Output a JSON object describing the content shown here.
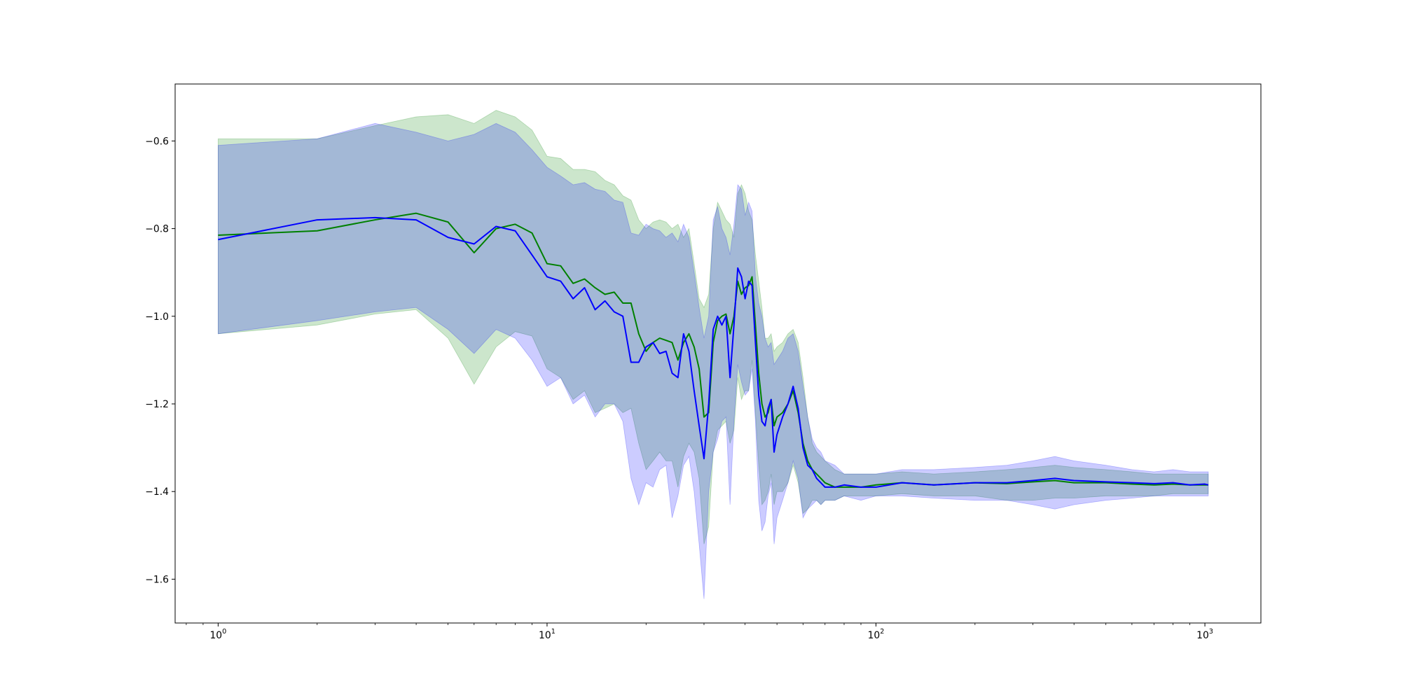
{
  "chart_data": {
    "type": "line",
    "title": "",
    "xlabel": "",
    "ylabel": "",
    "xscale": "log",
    "xlim": [
      0.74,
      1480
    ],
    "ylim": [
      -1.7,
      -0.47
    ],
    "grid": false,
    "legend": "none",
    "x_ticks": [
      {
        "base": "10",
        "exp": "0",
        "value": 1
      },
      {
        "base": "10",
        "exp": "1",
        "value": 10
      },
      {
        "base": "10",
        "exp": "2",
        "value": 100
      },
      {
        "base": "10",
        "exp": "3",
        "value": 1000
      }
    ],
    "y_ticks": [
      {
        "label": "−0.6",
        "value": -0.6
      },
      {
        "label": "−0.8",
        "value": -0.8
      },
      {
        "label": "−1.0",
        "value": -1.0
      },
      {
        "label": "−1.2",
        "value": -1.2
      },
      {
        "label": "−1.4",
        "value": -1.4
      },
      {
        "label": "−1.6",
        "value": -1.6
      }
    ],
    "series": [
      {
        "color": "#008000",
        "band_color": "#008000",
        "band_alpha": 0.2,
        "x": [
          1,
          2,
          3,
          4,
          5,
          6,
          7,
          8,
          9,
          10,
          11,
          12,
          13,
          14,
          15,
          16,
          17,
          18,
          19,
          20,
          21,
          22,
          23,
          24,
          25,
          26,
          27,
          28,
          29,
          30,
          31,
          32,
          33,
          34,
          35,
          36,
          37,
          38,
          39,
          40,
          41,
          42,
          43,
          44,
          45,
          46,
          47,
          48,
          49,
          50,
          52,
          54,
          56,
          58,
          60,
          62,
          64,
          66,
          68,
          70,
          75,
          80,
          90,
          100,
          120,
          150,
          200,
          250,
          300,
          350,
          400,
          500,
          600,
          700,
          800,
          900,
          1000,
          1024
        ],
        "y": [
          -0.815,
          -0.805,
          -0.78,
          -0.765,
          -0.785,
          -0.855,
          -0.8,
          -0.79,
          -0.81,
          -0.88,
          -0.885,
          -0.925,
          -0.915,
          -0.935,
          -0.95,
          -0.945,
          -0.97,
          -0.97,
          -1.04,
          -1.08,
          -1.06,
          -1.05,
          -1.055,
          -1.06,
          -1.1,
          -1.06,
          -1.04,
          -1.07,
          -1.12,
          -1.23,
          -1.22,
          -1.06,
          -1.01,
          -1.0,
          -0.995,
          -1.04,
          -1.0,
          -0.92,
          -0.95,
          -0.935,
          -0.93,
          -0.91,
          -1.02,
          -1.13,
          -1.2,
          -1.23,
          -1.22,
          -1.19,
          -1.25,
          -1.23,
          -1.22,
          -1.2,
          -1.17,
          -1.22,
          -1.29,
          -1.33,
          -1.35,
          -1.36,
          -1.37,
          -1.38,
          -1.39,
          -1.39,
          -1.39,
          -1.385,
          -1.38,
          -1.385,
          -1.38,
          -1.382,
          -1.378,
          -1.375,
          -1.38,
          -1.38,
          -1.383,
          -1.385,
          -1.383,
          -1.385,
          -1.385,
          -1.385
        ],
        "upper": [
          -0.595,
          -0.595,
          -0.565,
          -0.545,
          -0.54,
          -0.56,
          -0.53,
          -0.545,
          -0.575,
          -0.635,
          -0.64,
          -0.665,
          -0.665,
          -0.67,
          -0.69,
          -0.7,
          -0.725,
          -0.735,
          -0.78,
          -0.8,
          -0.785,
          -0.78,
          -0.785,
          -0.8,
          -0.79,
          -0.82,
          -0.8,
          -0.88,
          -0.96,
          -0.98,
          -0.95,
          -0.8,
          -0.74,
          -0.76,
          -0.78,
          -0.79,
          -0.82,
          -0.72,
          -0.7,
          -0.72,
          -0.76,
          -0.78,
          -0.86,
          -0.92,
          -0.98,
          -1.05,
          -1.05,
          -1.04,
          -1.08,
          -1.07,
          -1.06,
          -1.04,
          -1.03,
          -1.06,
          -1.14,
          -1.23,
          -1.29,
          -1.31,
          -1.32,
          -1.33,
          -1.35,
          -1.36,
          -1.36,
          -1.36,
          -1.355,
          -1.36,
          -1.355,
          -1.35,
          -1.345,
          -1.34,
          -1.345,
          -1.35,
          -1.355,
          -1.36,
          -1.36,
          -1.36,
          -1.36,
          -1.36
        ],
        "lower": [
          -1.04,
          -1.02,
          -0.995,
          -0.985,
          -1.05,
          -1.155,
          -1.07,
          -1.035,
          -1.045,
          -1.12,
          -1.14,
          -1.19,
          -1.17,
          -1.22,
          -1.21,
          -1.2,
          -1.22,
          -1.21,
          -1.29,
          -1.35,
          -1.33,
          -1.31,
          -1.33,
          -1.33,
          -1.39,
          -1.32,
          -1.29,
          -1.31,
          -1.37,
          -1.52,
          -1.48,
          -1.31,
          -1.26,
          -1.25,
          -1.24,
          -1.29,
          -1.26,
          -1.14,
          -1.19,
          -1.17,
          -1.17,
          -1.1,
          -1.22,
          -1.34,
          -1.43,
          -1.42,
          -1.4,
          -1.36,
          -1.43,
          -1.4,
          -1.4,
          -1.38,
          -1.34,
          -1.38,
          -1.45,
          -1.44,
          -1.42,
          -1.42,
          -1.43,
          -1.42,
          -1.42,
          -1.41,
          -1.41,
          -1.41,
          -1.405,
          -1.41,
          -1.41,
          -1.42,
          -1.42,
          -1.415,
          -1.415,
          -1.41,
          -1.41,
          -1.41,
          -1.405,
          -1.405,
          -1.405,
          -1.405
        ]
      },
      {
        "color": "#0000ff",
        "band_color": "#0000ff",
        "band_alpha": 0.2,
        "x": [
          1,
          2,
          3,
          4,
          5,
          6,
          7,
          8,
          9,
          10,
          11,
          12,
          13,
          14,
          15,
          16,
          17,
          18,
          19,
          20,
          21,
          22,
          23,
          24,
          25,
          26,
          27,
          28,
          29,
          30,
          31,
          32,
          33,
          34,
          35,
          36,
          37,
          38,
          39,
          40,
          41,
          42,
          43,
          44,
          45,
          46,
          47,
          48,
          49,
          50,
          52,
          54,
          56,
          58,
          60,
          62,
          64,
          66,
          68,
          70,
          75,
          80,
          90,
          100,
          120,
          150,
          200,
          250,
          300,
          350,
          400,
          500,
          600,
          700,
          800,
          900,
          1000,
          1024
        ],
        "y": [
          -0.825,
          -0.78,
          -0.775,
          -0.78,
          -0.82,
          -0.835,
          -0.795,
          -0.805,
          -0.86,
          -0.91,
          -0.92,
          -0.96,
          -0.935,
          -0.985,
          -0.965,
          -0.99,
          -1.0,
          -1.105,
          -1.105,
          -1.07,
          -1.06,
          -1.085,
          -1.08,
          -1.13,
          -1.14,
          -1.04,
          -1.08,
          -1.17,
          -1.25,
          -1.325,
          -1.2,
          -1.03,
          -1.0,
          -1.02,
          -1.0,
          -1.14,
          -1.02,
          -0.89,
          -0.91,
          -0.96,
          -0.92,
          -0.93,
          -1.06,
          -1.18,
          -1.24,
          -1.25,
          -1.21,
          -1.19,
          -1.31,
          -1.27,
          -1.23,
          -1.2,
          -1.16,
          -1.21,
          -1.3,
          -1.34,
          -1.35,
          -1.37,
          -1.38,
          -1.39,
          -1.39,
          -1.385,
          -1.39,
          -1.39,
          -1.38,
          -1.385,
          -1.38,
          -1.38,
          -1.375,
          -1.37,
          -1.375,
          -1.378,
          -1.38,
          -1.382,
          -1.38,
          -1.385,
          -1.383,
          -1.385
        ],
        "upper": [
          -0.61,
          -0.595,
          -0.56,
          -0.58,
          -0.6,
          -0.585,
          -0.56,
          -0.58,
          -0.62,
          -0.66,
          -0.68,
          -0.7,
          -0.695,
          -0.71,
          -0.715,
          -0.735,
          -0.74,
          -0.81,
          -0.815,
          -0.79,
          -0.8,
          -0.805,
          -0.82,
          -0.81,
          -0.83,
          -0.79,
          -0.82,
          -0.9,
          -0.98,
          -1.05,
          -1.0,
          -0.78,
          -0.75,
          -0.8,
          -0.82,
          -0.86,
          -0.79,
          -0.7,
          -0.71,
          -0.77,
          -0.74,
          -0.76,
          -0.91,
          -0.97,
          -1.0,
          -1.05,
          -1.07,
          -1.06,
          -1.11,
          -1.1,
          -1.08,
          -1.05,
          -1.04,
          -1.08,
          -1.16,
          -1.23,
          -1.28,
          -1.3,
          -1.31,
          -1.33,
          -1.34,
          -1.36,
          -1.36,
          -1.36,
          -1.35,
          -1.35,
          -1.345,
          -1.34,
          -1.33,
          -1.32,
          -1.33,
          -1.34,
          -1.35,
          -1.355,
          -1.35,
          -1.355,
          -1.355,
          -1.355
        ],
        "lower": [
          -1.04,
          -1.01,
          -0.99,
          -0.98,
          -1.03,
          -1.085,
          -1.03,
          -1.05,
          -1.1,
          -1.16,
          -1.14,
          -1.2,
          -1.18,
          -1.23,
          -1.2,
          -1.2,
          -1.24,
          -1.37,
          -1.43,
          -1.38,
          -1.39,
          -1.35,
          -1.34,
          -1.46,
          -1.41,
          -1.34,
          -1.32,
          -1.4,
          -1.52,
          -1.645,
          -1.4,
          -1.31,
          -1.28,
          -1.24,
          -1.23,
          -1.43,
          -1.24,
          -1.11,
          -1.15,
          -1.18,
          -1.17,
          -1.12,
          -1.24,
          -1.42,
          -1.49,
          -1.47,
          -1.41,
          -1.38,
          -1.52,
          -1.46,
          -1.42,
          -1.38,
          -1.33,
          -1.37,
          -1.46,
          -1.44,
          -1.43,
          -1.42,
          -1.43,
          -1.42,
          -1.42,
          -1.41,
          -1.42,
          -1.41,
          -1.41,
          -1.415,
          -1.42,
          -1.42,
          -1.43,
          -1.44,
          -1.43,
          -1.42,
          -1.415,
          -1.41,
          -1.41,
          -1.41,
          -1.41,
          -1.41
        ]
      }
    ]
  }
}
